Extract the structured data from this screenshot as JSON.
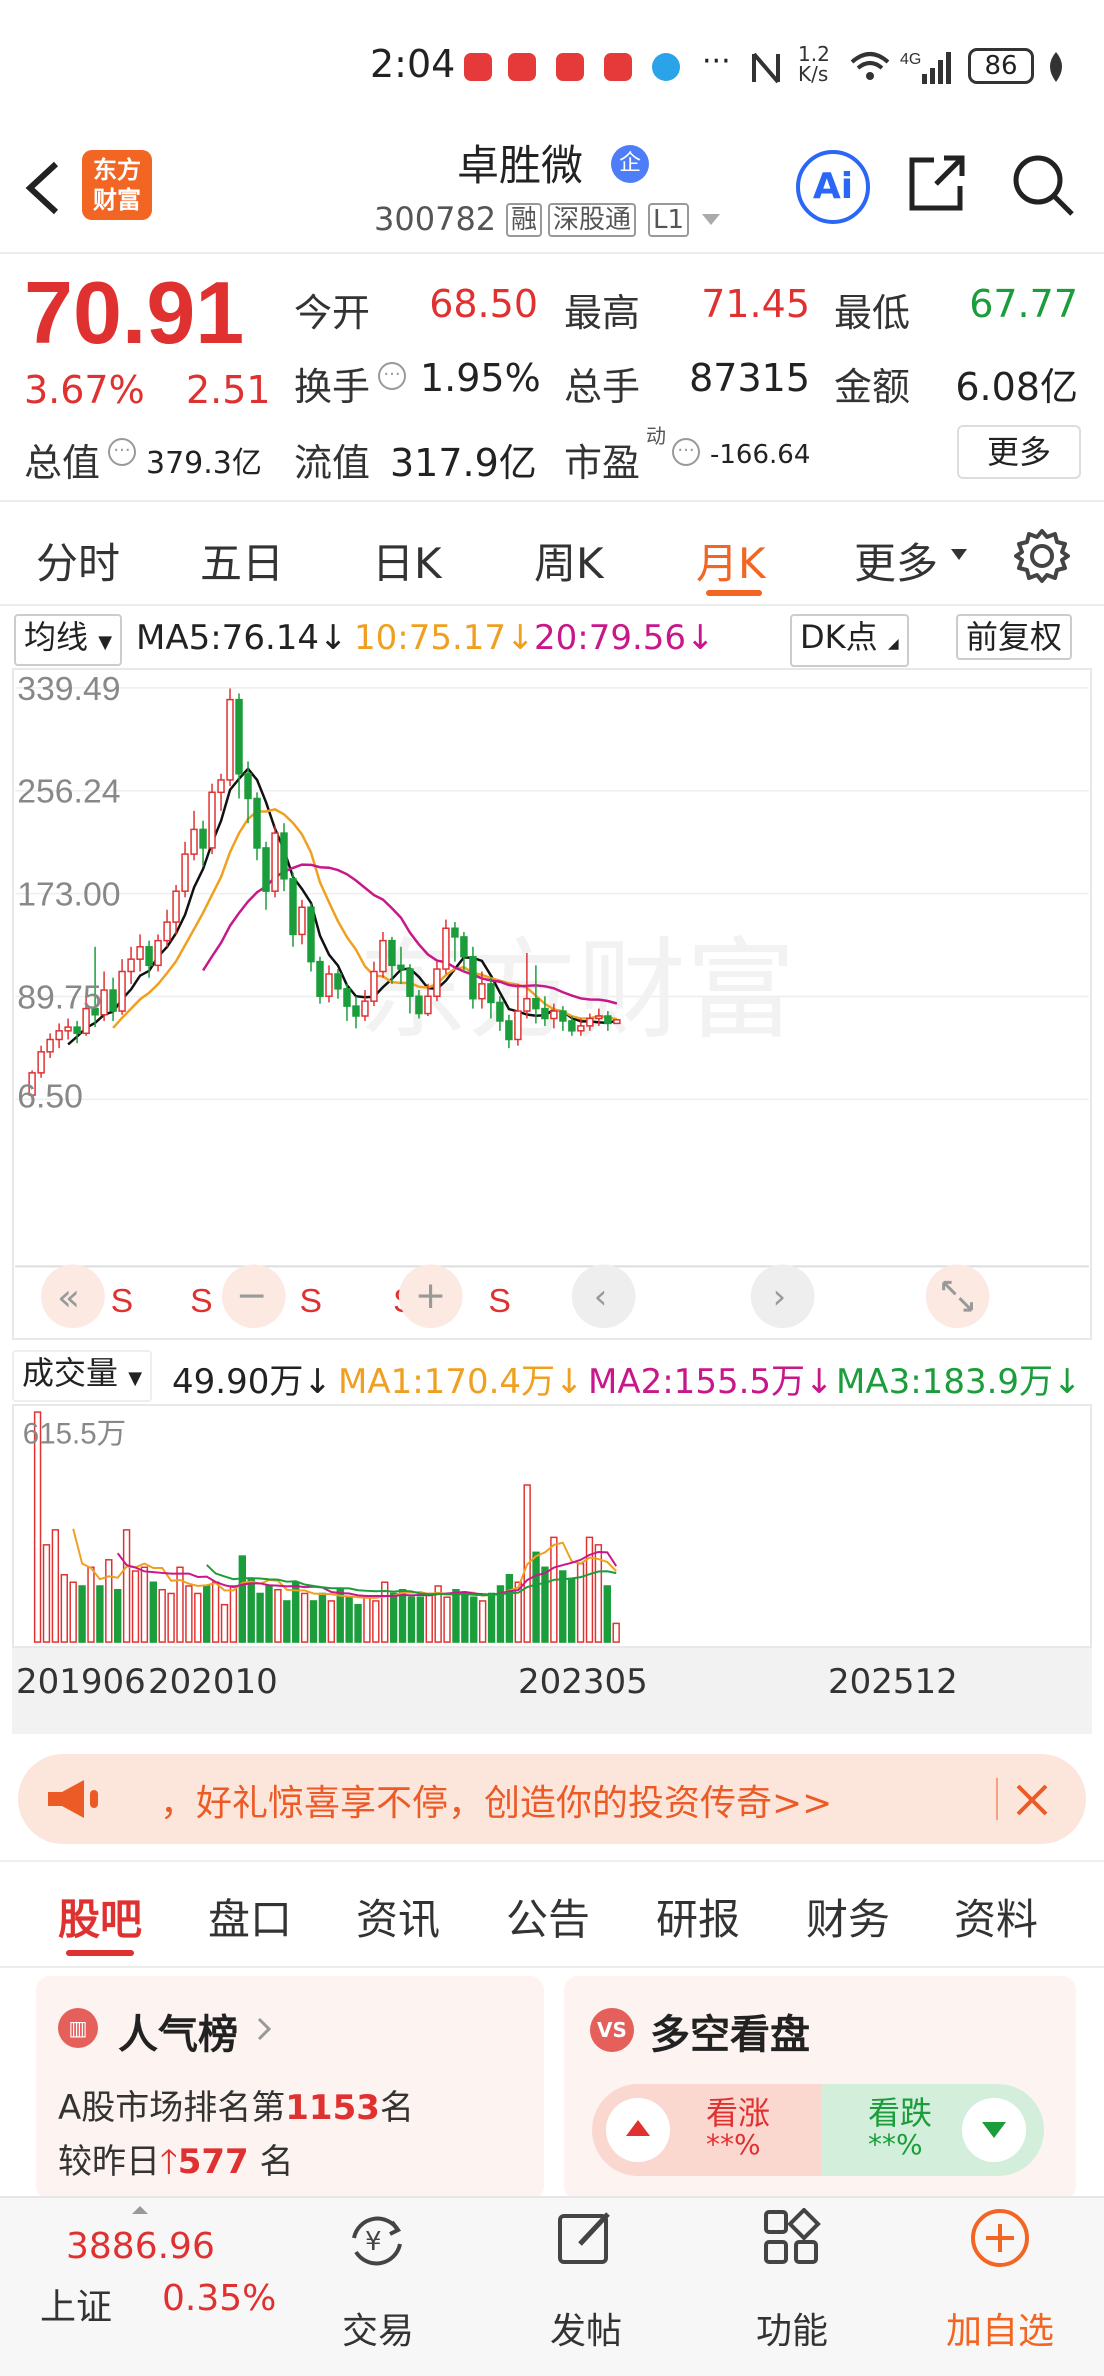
{
  "status_bar": {
    "time": "2:04",
    "network": "1.2\nK/s",
    "signal": "6 4G",
    "battery": "86"
  },
  "header": {
    "back_icon": "chevron-left-icon",
    "logo_text": "东方财富",
    "stock_name": "卓胜微",
    "qi_badge": "企",
    "code": "300782",
    "tags": [
      "融",
      "深股通",
      "L1"
    ],
    "ai_label": "Ai"
  },
  "quote": {
    "price": "70.91",
    "change_pct": "3.67%",
    "change": "2.51",
    "open_label": "今开",
    "open": "68.50",
    "high_label": "最高",
    "high": "71.45",
    "low_label": "最低",
    "low": "67.77",
    "turnover_label": "换手",
    "turnover": "1.95%",
    "volume_label": "总手",
    "volume": "87315",
    "amount_label": "金额",
    "amount": "6.08亿",
    "total_cap_label": "总值",
    "total_cap": "379.3亿",
    "float_cap_label": "流值",
    "float_cap": "317.9亿",
    "pe_label": "市盈",
    "pe_sup": "动",
    "pe": "-166.64",
    "more_label": "更多"
  },
  "period_tabs": [
    {
      "label": "分时"
    },
    {
      "label": "五日"
    },
    {
      "label": "日K"
    },
    {
      "label": "周K"
    },
    {
      "label": "月K",
      "active": true
    },
    {
      "label": "更多"
    }
  ],
  "ma_bar": {
    "selector": "均线",
    "ma5": "MA5:76.14",
    "ma10": "10:75.17",
    "ma20": "20:79.56",
    "dk_label": "DK点",
    "fq_label": "前复权"
  },
  "colors": {
    "up": "#e03131",
    "down": "#1a9d3a",
    "ma5": "#111111",
    "ma10": "#f0a020",
    "ma20": "#c8178a",
    "accent": "#f26522"
  },
  "chart_data": [
    {
      "type": "candlestick",
      "period": "monthly",
      "y_ticks": [
        "339.49",
        "256.24",
        "173.00",
        "89.75",
        "6.50"
      ],
      "ylim": [
        6.5,
        339.49
      ],
      "markers": [
        "S",
        "S",
        "S",
        "S",
        "S",
        "S"
      ],
      "x_ticks": [
        "201906",
        "202010",
        "202305",
        "202512"
      ],
      "candles": [
        [
          10,
          28,
          6.5,
          30
        ],
        [
          28,
          45,
          24,
          50
        ],
        [
          45,
          55,
          40,
          60
        ],
        [
          55,
          62,
          48,
          68
        ],
        [
          62,
          65,
          55,
          72
        ],
        [
          65,
          60,
          52,
          70
        ],
        [
          60,
          80,
          58,
          90
        ],
        [
          80,
          75,
          65,
          130
        ],
        [
          75,
          95,
          70,
          110
        ],
        [
          95,
          78,
          70,
          105
        ],
        [
          78,
          110,
          75,
          120
        ],
        [
          110,
          120,
          100,
          130
        ],
        [
          120,
          130,
          110,
          140
        ],
        [
          130,
          115,
          105,
          135
        ],
        [
          115,
          135,
          110,
          140
        ],
        [
          135,
          150,
          130,
          160
        ],
        [
          150,
          175,
          140,
          180
        ],
        [
          175,
          205,
          170,
          215
        ],
        [
          205,
          225,
          200,
          240
        ],
        [
          225,
          210,
          195,
          232
        ],
        [
          210,
          255,
          205,
          262
        ],
        [
          255,
          265,
          240,
          270
        ],
        [
          265,
          330,
          260,
          339
        ],
        [
          330,
          270,
          250,
          335
        ],
        [
          270,
          250,
          230,
          280
        ],
        [
          250,
          210,
          200,
          255
        ],
        [
          210,
          175,
          160,
          215
        ],
        [
          175,
          222,
          170,
          228
        ],
        [
          222,
          185,
          175,
          230
        ],
        [
          185,
          140,
          130,
          190
        ],
        [
          140,
          162,
          132,
          168
        ],
        [
          162,
          118,
          110,
          165
        ],
        [
          118,
          90,
          84,
          122
        ],
        [
          90,
          108,
          85,
          115
        ],
        [
          108,
          96,
          88,
          112
        ],
        [
          96,
          82,
          70,
          100
        ],
        [
          82,
          74,
          64,
          90
        ],
        [
          74,
          86,
          70,
          95
        ],
        [
          86,
          110,
          82,
          118
        ],
        [
          110,
          135,
          105,
          142
        ],
        [
          135,
          115,
          100,
          138
        ],
        [
          115,
          112,
          100,
          130
        ],
        [
          112,
          90,
          76,
          116
        ],
        [
          90,
          76,
          72,
          95
        ],
        [
          76,
          90,
          74,
          100
        ],
        [
          90,
          112,
          86,
          118
        ],
        [
          112,
          145,
          108,
          152
        ],
        [
          145,
          138,
          118,
          150
        ],
        [
          138,
          122,
          110,
          142
        ],
        [
          122,
          88,
          80,
          130
        ],
        [
          88,
          100,
          80,
          110
        ],
        [
          100,
          85,
          72,
          105
        ],
        [
          85,
          70,
          62,
          90
        ],
        [
          70,
          55,
          48,
          75
        ],
        [
          55,
          78,
          50,
          100
        ],
        [
          78,
          88,
          72,
          125
        ],
        [
          88,
          80,
          68,
          115
        ],
        [
          80,
          72,
          66,
          90
        ],
        [
          72,
          78,
          64,
          84
        ],
        [
          78,
          70,
          62,
          82
        ],
        [
          70,
          62,
          58,
          74
        ],
        [
          62,
          66,
          58,
          72
        ],
        [
          66,
          72,
          62,
          76
        ],
        [
          72,
          74,
          66,
          80
        ],
        [
          74,
          68,
          62,
          78
        ],
        [
          68,
          70.91,
          67.77,
          71.45
        ]
      ]
    },
    {
      "type": "bar",
      "title": "成交量",
      "ylim": [
        0,
        615.5
      ],
      "y_tick": "615.5万",
      "unit": "万",
      "values": [
        615,
        260,
        300,
        180,
        160,
        150,
        200,
        150,
        220,
        140,
        300,
        190,
        200,
        160,
        140,
        130,
        200,
        150,
        130,
        150,
        160,
        100,
        150,
        230,
        170,
        130,
        150,
        140,
        110,
        160,
        130,
        110,
        130,
        110,
        140,
        120,
        100,
        120,
        110,
        160,
        130,
        140,
        120,
        120,
        130,
        150,
        120,
        140,
        130,
        120,
        110,
        130,
        150,
        180,
        160,
        420,
        240,
        200,
        280,
        190,
        170,
        210,
        280,
        260,
        150,
        49.9
      ],
      "ma1": "MA1:170.4万",
      "ma2": "MA2:155.5万",
      "ma3": "MA3:183.9万",
      "latest": "49.90万"
    }
  ],
  "banner": {
    "text": "，好礼惊喜享不停，创造你的投资传奇>>"
  },
  "section_tabs": [
    {
      "label": "股吧",
      "active": true
    },
    {
      "label": "盘口"
    },
    {
      "label": "资讯"
    },
    {
      "label": "公告"
    },
    {
      "label": "研报"
    },
    {
      "label": "财务"
    },
    {
      "label": "资料"
    }
  ],
  "popularity": {
    "title": "人气榜",
    "rank_prefix": "A股市场排名第",
    "rank": "1153",
    "rank_suffix": "名",
    "change_prefix": "较昨日",
    "change": "577",
    "change_suffix": " 名"
  },
  "bullbear": {
    "title": "多空看盘",
    "up_label": "看涨",
    "up_value": "**%",
    "down_label": "看跌",
    "down_value": "**%"
  },
  "bottom_nav": {
    "index_value": "3886.96",
    "index_name": "上证",
    "index_change": "0.35%",
    "items": [
      {
        "label": "交易",
        "icon": "trade-icon"
      },
      {
        "label": "发帖",
        "icon": "post-icon"
      },
      {
        "label": "功能",
        "icon": "grid-icon"
      },
      {
        "label": "加自选",
        "icon": "add-circle-icon"
      }
    ]
  }
}
